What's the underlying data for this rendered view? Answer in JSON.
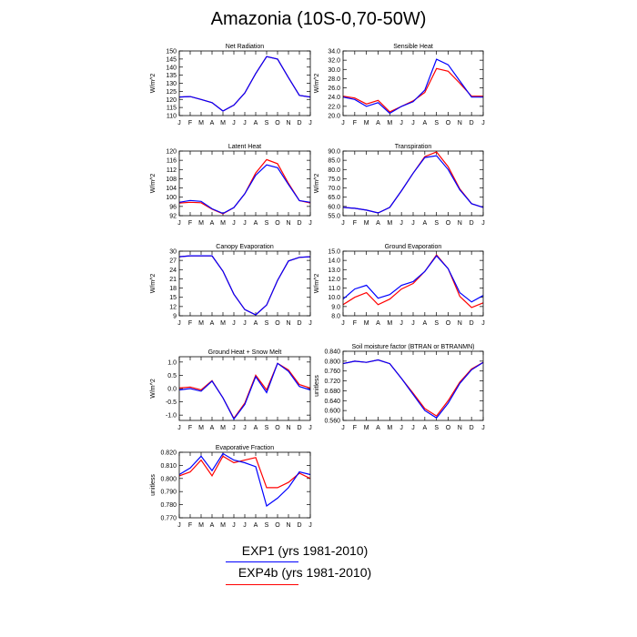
{
  "page": {
    "title": "Amazonia (10S-0,70-50W)"
  },
  "legend": [
    {
      "label": "EXP1 (yrs 1981-2010)",
      "color": "#0000ff"
    },
    {
      "label": "EXP4b (yrs 1981-2010)",
      "color": "#ff0000"
    }
  ],
  "months": [
    "J",
    "F",
    "M",
    "A",
    "M",
    "J",
    "J",
    "A",
    "S",
    "O",
    "N",
    "D",
    "J"
  ],
  "chart_data": [
    {
      "type": "line",
      "title": "Net Radiation",
      "ylabel": "W/m^2",
      "ylim": [
        110,
        150
      ],
      "yticks": [
        110,
        115,
        120,
        125,
        130,
        135,
        140,
        145,
        150
      ],
      "ytick_labels": [
        "110",
        "115",
        "120",
        "125",
        "130",
        "135",
        "140",
        "145",
        "150"
      ],
      "series": [
        {
          "name": "EXP1 (yrs 1981-2010)",
          "color": "#0000ff",
          "values": [
            121.5,
            121.8,
            120,
            118,
            112.8,
            116.5,
            124,
            136,
            146.5,
            145,
            133.5,
            122.5,
            121.5
          ]
        },
        {
          "name": "EXP4b (yrs 1981-2010)",
          "color": "#ff0000",
          "values": [
            121.5,
            121.8,
            120,
            118,
            112.8,
            116.5,
            124,
            136,
            146.5,
            145,
            133.5,
            122.5,
            121.5
          ]
        }
      ]
    },
    {
      "type": "line",
      "title": "Sensible Heat",
      "ylabel": "W/m^2",
      "ylim": [
        20,
        34
      ],
      "yticks": [
        20,
        22,
        24,
        26,
        28,
        30,
        32,
        34
      ],
      "ytick_labels": [
        "20.0",
        "22.0",
        "24.0",
        "26.0",
        "28.0",
        "30.0",
        "32.0",
        "34.0"
      ],
      "series": [
        {
          "name": "EXP1 (yrs 1981-2010)",
          "color": "#0000ff",
          "values": [
            24,
            23.5,
            22,
            22.8,
            20.5,
            22,
            23,
            25.5,
            32.2,
            31,
            27.5,
            24,
            24
          ]
        },
        {
          "name": "EXP4b (yrs 1981-2010)",
          "color": "#ff0000",
          "values": [
            24.2,
            23.8,
            22.5,
            23.3,
            20.8,
            22,
            23.2,
            25,
            30.2,
            29.6,
            27,
            24.2,
            24.2
          ]
        }
      ]
    },
    {
      "type": "line",
      "title": "Latent Heat",
      "ylabel": "W/m^2",
      "ylim": [
        92,
        120
      ],
      "yticks": [
        92,
        96,
        100,
        104,
        108,
        112,
        116,
        120
      ],
      "ytick_labels": [
        "92",
        "96",
        "100",
        "104",
        "108",
        "112",
        "116",
        "120"
      ],
      "series": [
        {
          "name": "EXP1 (yrs 1981-2010)",
          "color": "#0000ff",
          "values": [
            97.8,
            98.6,
            98.2,
            95,
            93,
            95.5,
            101.5,
            109.5,
            114,
            112.8,
            105.5,
            98.5,
            97.8
          ]
        },
        {
          "name": "EXP4b (yrs 1981-2010)",
          "color": "#ff0000",
          "values": [
            97.5,
            97.8,
            97.6,
            94.8,
            92.8,
            95.5,
            101.5,
            110.5,
            116.3,
            114.5,
            106,
            98.5,
            97.5
          ]
        }
      ]
    },
    {
      "type": "line",
      "title": "Transpiration",
      "ylabel": "W/m^2",
      "ylim": [
        55,
        90
      ],
      "yticks": [
        55,
        60,
        65,
        70,
        75,
        80,
        85,
        90
      ],
      "ytick_labels": [
        "55.0",
        "60.0",
        "65.0",
        "70.0",
        "75.0",
        "80.0",
        "85.0",
        "90.0"
      ],
      "series": [
        {
          "name": "EXP1 (yrs 1981-2010)",
          "color": "#0000ff",
          "values": [
            59.5,
            59,
            58,
            56.5,
            59.5,
            68.5,
            78,
            86.5,
            87.5,
            80,
            69,
            61.5,
            59.5
          ]
        },
        {
          "name": "EXP4b (yrs 1981-2010)",
          "color": "#ff0000",
          "values": [
            59.5,
            59,
            58,
            56.5,
            59.5,
            68.5,
            78,
            87,
            89.5,
            81.5,
            69.5,
            61.5,
            59.5
          ]
        }
      ]
    },
    {
      "type": "line",
      "title": "Canopy Evaporation",
      "ylabel": "W/m^2",
      "ylim": [
        9,
        30
      ],
      "yticks": [
        9,
        12,
        15,
        18,
        21,
        24,
        27,
        30
      ],
      "ytick_labels": [
        "9",
        "12",
        "15",
        "18",
        "21",
        "24",
        "27",
        "30"
      ],
      "series": [
        {
          "name": "EXP1 (yrs 1981-2010)",
          "color": "#0000ff",
          "values": [
            28.2,
            28.5,
            28.5,
            28.5,
            23.5,
            16,
            11,
            9.3,
            12.5,
            20.5,
            26.8,
            28,
            28.2
          ]
        },
        {
          "name": "EXP4b (yrs 1981-2010)",
          "color": "#ff0000",
          "values": [
            28.2,
            28.5,
            28.5,
            28.5,
            23.5,
            16,
            11,
            9.3,
            12.5,
            20.5,
            26.8,
            28,
            28.2
          ]
        }
      ]
    },
    {
      "type": "line",
      "title": "Ground Evaporation",
      "ylabel": "W/m^2",
      "ylim": [
        8,
        15
      ],
      "yticks": [
        8,
        9,
        10,
        11,
        12,
        13,
        14,
        15
      ],
      "ytick_labels": [
        "8.0",
        "9.0",
        "10.0",
        "11.0",
        "12.0",
        "13.0",
        "14.0",
        "15.0"
      ],
      "series": [
        {
          "name": "EXP1 (yrs 1981-2010)",
          "color": "#0000ff",
          "values": [
            9.8,
            10.9,
            11.3,
            9.9,
            10.3,
            11.3,
            11.7,
            12.8,
            14.5,
            13.1,
            10.5,
            9.5,
            10.2
          ]
        },
        {
          "name": "EXP4b (yrs 1981-2010)",
          "color": "#ff0000",
          "values": [
            9.2,
            10,
            10.5,
            9.2,
            9.8,
            10.9,
            11.5,
            12.8,
            14.6,
            13.1,
            10.1,
            8.9,
            9.4
          ]
        }
      ]
    },
    {
      "type": "line",
      "title": "Ground Heat + Snow Melt",
      "ylabel": "W/m^2",
      "ylim": [
        -1.2,
        1.2
      ],
      "yticks": [
        -1,
        -0.5,
        0,
        0.5,
        1
      ],
      "ytick_labels": [
        "-1.0",
        "-0.5",
        "0.0",
        "0.5",
        "1.0"
      ],
      "series": [
        {
          "name": "EXP1 (yrs 1981-2010)",
          "color": "#0000ff",
          "values": [
            -0.05,
            0,
            -0.1,
            0.28,
            -0.35,
            -1.15,
            -0.6,
            0.45,
            -0.15,
            0.95,
            0.65,
            0.08,
            -0.05
          ]
        },
        {
          "name": "EXP4b (yrs 1981-2010)",
          "color": "#ff0000",
          "values": [
            0.02,
            0.06,
            -0.05,
            0.3,
            -0.35,
            -1.12,
            -0.55,
            0.5,
            -0.05,
            0.95,
            0.7,
            0.15,
            0.02
          ]
        }
      ]
    },
    {
      "type": "line",
      "title": "Soil moisture factor (BTRAN or BTRANMN)",
      "ylabel": "unitless",
      "ylim": [
        0.56,
        0.84
      ],
      "yticks": [
        0.56,
        0.6,
        0.64,
        0.68,
        0.72,
        0.76,
        0.8,
        0.84
      ],
      "ytick_labels": [
        "0.560",
        "0.600",
        "0.640",
        "0.680",
        "0.720",
        "0.760",
        "0.800",
        "0.840"
      ],
      "series": [
        {
          "name": "EXP1 (yrs 1981-2010)",
          "color": "#0000ff",
          "values": [
            0.79,
            0.8,
            0.795,
            0.805,
            0.79,
            0.73,
            0.665,
            0.6,
            0.57,
            0.63,
            0.71,
            0.765,
            0.795
          ]
        },
        {
          "name": "EXP4b (yrs 1981-2010)",
          "color": "#ff0000",
          "values": [
            0.79,
            0.8,
            0.795,
            0.805,
            0.79,
            0.73,
            0.67,
            0.608,
            0.578,
            0.64,
            0.715,
            0.768,
            0.795
          ]
        }
      ]
    },
    {
      "type": "line",
      "title": "Evaporative Fraction",
      "ylabel": "unitless",
      "ylim": [
        0.77,
        0.82
      ],
      "yticks": [
        0.77,
        0.78,
        0.79,
        0.8,
        0.81,
        0.82
      ],
      "ytick_labels": [
        "0.770",
        "0.780",
        "0.790",
        "0.800",
        "0.810",
        "0.820"
      ],
      "series": [
        {
          "name": "EXP1 (yrs 1981-2010)",
          "color": "#0000ff",
          "values": [
            0.803,
            0.808,
            0.817,
            0.806,
            0.819,
            0.814,
            0.812,
            0.809,
            0.779,
            0.785,
            0.793,
            0.805,
            0.803
          ]
        },
        {
          "name": "EXP4b (yrs 1981-2010)",
          "color": "#ff0000",
          "values": [
            0.802,
            0.805,
            0.814,
            0.802,
            0.817,
            0.812,
            0.814,
            0.816,
            0.793,
            0.793,
            0.797,
            0.804,
            0.8
          ]
        }
      ]
    }
  ]
}
